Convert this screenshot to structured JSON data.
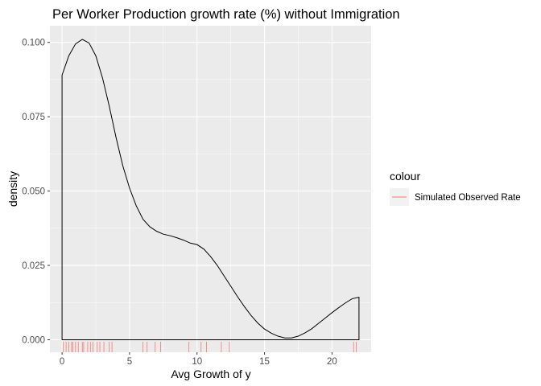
{
  "chart_data": {
    "type": "density",
    "title": "Per Worker Production growth rate (%) without Immigration",
    "xlabel": "Avg Growth of y",
    "ylabel": "density",
    "xlim": [
      -0.9,
      22.9
    ],
    "ylim": [
      -0.0042,
      0.1056
    ],
    "x_ticks": [
      0,
      5,
      10,
      15,
      20
    ],
    "y_ticks": [
      0.0,
      0.025,
      0.05,
      0.075,
      0.1
    ],
    "x_tick_labels": [
      "0",
      "5",
      "10",
      "15",
      "20"
    ],
    "y_tick_labels": [
      "0.000",
      "0.025",
      "0.050",
      "0.075",
      "0.100"
    ],
    "grid": true,
    "line_color": "#000000",
    "rug_color": "#f8766d",
    "panel_background": "#ebebeb",
    "density_curve": {
      "x": [
        0.0,
        0.5,
        1.0,
        1.5,
        2.0,
        2.5,
        3.0,
        3.5,
        4.0,
        4.5,
        5.0,
        5.5,
        6.0,
        6.5,
        7.0,
        7.5,
        8.0,
        8.5,
        9.0,
        9.5,
        10.0,
        10.5,
        11.0,
        11.5,
        12.0,
        12.5,
        13.0,
        13.5,
        14.0,
        14.5,
        15.0,
        15.5,
        16.0,
        16.5,
        17.0,
        17.5,
        18.0,
        18.5,
        19.0,
        19.5,
        20.0,
        20.5,
        21.0,
        21.5,
        22.0
      ],
      "y": [
        0.089,
        0.0955,
        0.0995,
        0.101,
        0.0998,
        0.0955,
        0.088,
        0.0785,
        0.068,
        0.0585,
        0.051,
        0.045,
        0.0405,
        0.038,
        0.0365,
        0.0355,
        0.035,
        0.0343,
        0.0335,
        0.0325,
        0.032,
        0.0305,
        0.028,
        0.025,
        0.0215,
        0.018,
        0.0145,
        0.0112,
        0.0082,
        0.0056,
        0.0036,
        0.0022,
        0.0012,
        0.0006,
        0.0006,
        0.0012,
        0.0023,
        0.0037,
        0.0055,
        0.0073,
        0.0091,
        0.0108,
        0.0124,
        0.0138,
        0.0143
      ]
    },
    "rug_values": [
      0.1,
      0.3,
      0.5,
      0.7,
      0.8,
      1.0,
      1.2,
      1.5,
      1.6,
      1.9,
      2.1,
      2.3,
      2.6,
      2.8,
      3.1,
      3.5,
      3.7,
      6.0,
      6.3,
      6.9,
      7.3,
      9.4,
      10.3,
      10.7,
      11.8,
      12.4,
      21.6,
      21.8
    ],
    "legend": {
      "title": "colour",
      "entries": [
        {
          "label": "Simulated Observed Rate",
          "color": "#f8766d"
        }
      ]
    }
  }
}
